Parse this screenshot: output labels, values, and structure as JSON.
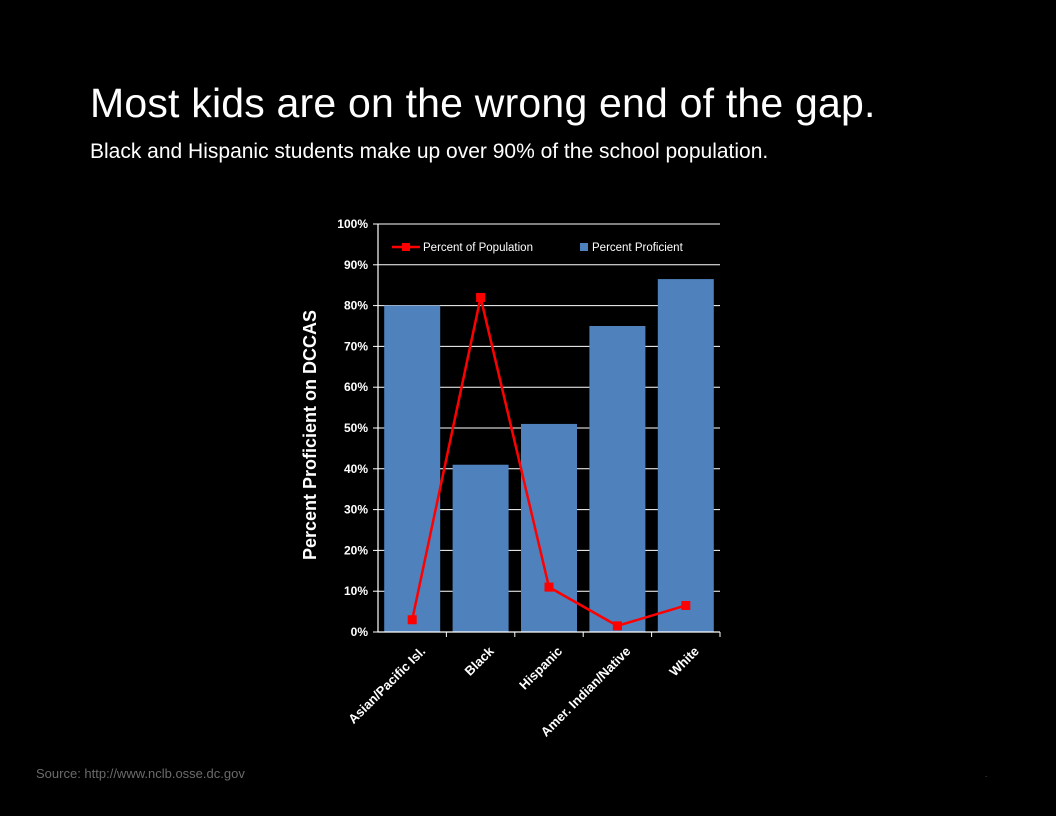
{
  "slide": {
    "title": "Most kids are on the wrong end of the gap.",
    "subtitle": "Black and Hispanic students make up over 90% of the school population.",
    "source": "Source: http://www.nclb.osse.dc.gov",
    "footer_mark": "."
  },
  "colors": {
    "background": "#000000",
    "bar": "#4f81bd",
    "line": "#ff0000",
    "grid": "#ffffff",
    "text": "#ffffff"
  },
  "chart_data": {
    "type": "bar",
    "title": "",
    "xlabel": "",
    "ylabel": "Percent Proficient on DCCAS",
    "ylim": [
      0,
      100
    ],
    "ytick_step": 10,
    "ytick_suffix": "%",
    "yticks": [
      "0%",
      "10%",
      "20%",
      "30%",
      "40%",
      "50%",
      "60%",
      "70%",
      "80%",
      "90%",
      "100%"
    ],
    "grid": true,
    "legend_position": "top",
    "categories": [
      "Asian/Pacific Isl.",
      "Black",
      "Hispanic",
      "Amer. Indian/Native",
      "White"
    ],
    "series": [
      {
        "name": "Percent Proficient",
        "type": "bar",
        "color": "#4f81bd",
        "values": [
          80,
          41,
          51,
          75,
          86.5
        ]
      },
      {
        "name": "Percent of Population",
        "type": "line",
        "marker": "square",
        "color": "#ff0000",
        "values": [
          3,
          82,
          11,
          1.5,
          6.5
        ]
      }
    ]
  }
}
